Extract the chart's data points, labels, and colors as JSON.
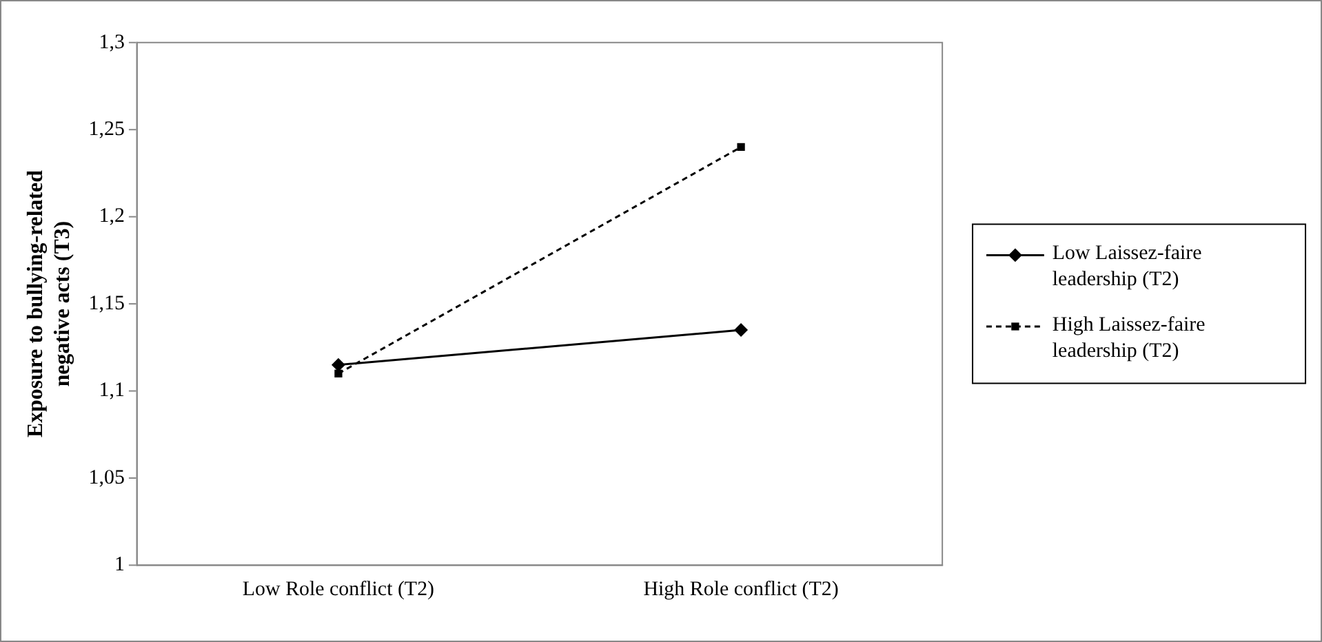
{
  "chart_data": {
    "type": "line",
    "ylabel": "Exposure to bullying-related negative acts (T3)",
    "categories": [
      "Low Role conflict (T2)",
      "High Role conflict (T2)"
    ],
    "series": [
      {
        "name": "Low Laissez-faire leadership (T2)",
        "color": "#000000",
        "values": [
          1.115,
          1.135
        ],
        "marker": "diamond",
        "line_style": "solid"
      },
      {
        "name": "High Laissez-faire leadership (T2)",
        "color": "#000000",
        "values": [
          1.11,
          1.24
        ],
        "marker": "square",
        "line_style": "dashed"
      }
    ],
    "ylim": [
      1,
      1.3
    ],
    "yticks": [
      {
        "value": 1,
        "label": "1"
      },
      {
        "value": 1.05,
        "label": "1,05"
      },
      {
        "value": 1.1,
        "label": "1,1"
      },
      {
        "value": 1.15,
        "label": "1,15"
      },
      {
        "value": 1.2,
        "label": "1,2"
      },
      {
        "value": 1.25,
        "label": "1,25"
      },
      {
        "value": 1.3,
        "label": "1,3"
      }
    ],
    "grid": false,
    "legend": "right"
  }
}
